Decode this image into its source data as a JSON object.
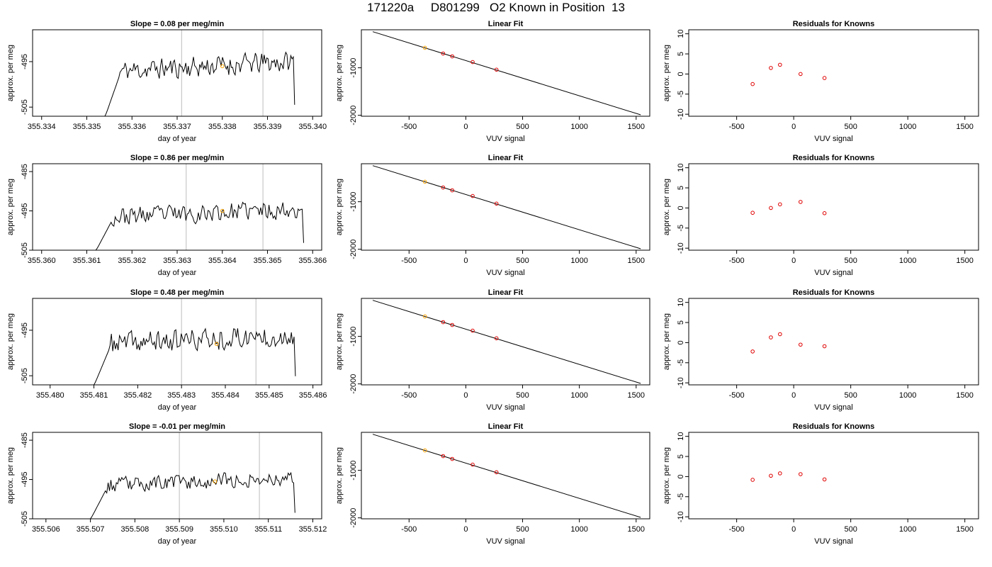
{
  "page_title": "171220a     D801299   O2 Known in Position  13",
  "colors": {
    "trace": "#000000",
    "vline": "#c8c8c8",
    "known_point": "#ffa500",
    "point": "#e00000",
    "fit_line": "#000000"
  },
  "chart_data": [
    {
      "type": "line",
      "panel": "trace-row-1",
      "title": "Slope =  0.08  per meg/min",
      "xlabel": "day of year",
      "ylabel": "approx. per meg",
      "xlim": [
        355.3338,
        355.3402
      ],
      "ylim": [
        -507,
        -488
      ],
      "xticks": [
        "355.334",
        "355.335",
        "355.336",
        "355.337",
        "355.338",
        "355.339",
        "355.340"
      ],
      "yticks": [
        "-505",
        "-495"
      ],
      "x_start": 355.3354,
      "x_end": 355.3396,
      "start_value": -507,
      "mean_level": -495.5,
      "amplitude": 1.8,
      "seed": 11,
      "vlines": [
        355.3371,
        355.3389
      ],
      "marker": {
        "x": 355.338,
        "y": -496,
        "color": "#ffa500"
      }
    },
    {
      "type": "scatter",
      "panel": "fit-row-1",
      "title": "Linear Fit",
      "xlabel": "VUV signal",
      "ylabel": "approx. per meg",
      "xlim": [
        -920,
        1620
      ],
      "ylim": [
        -2020,
        -200
      ],
      "xticks": [
        "-500",
        "0",
        "500",
        "1000",
        "1500"
      ],
      "yticks": [
        "-1000",
        "-2000"
      ],
      "line": {
        "x": [
          -820,
          1540
        ],
        "y": [
          -240,
          -1990
        ]
      },
      "points": [
        {
          "x": -360,
          "y": -580,
          "color": "#ffa500"
        },
        {
          "x": -200,
          "y": -700
        },
        {
          "x": -120,
          "y": -760
        },
        {
          "x": 60,
          "y": -880
        },
        {
          "x": 270,
          "y": -1040
        }
      ]
    },
    {
      "type": "scatter",
      "panel": "residual-row-1",
      "title": "Residuals for Knowns",
      "xlabel": "VUV signal",
      "ylabel": "approx. per meg",
      "xlim": [
        -920,
        1620
      ],
      "ylim": [
        -10.5,
        11
      ],
      "xticks": [
        "-500",
        "0",
        "500",
        "1000",
        "1500"
      ],
      "yticks": [
        "-10",
        "-5",
        "0",
        "5",
        "10"
      ],
      "points": [
        {
          "x": -360,
          "y": -2.5
        },
        {
          "x": -200,
          "y": 1.5
        },
        {
          "x": -120,
          "y": 2.3
        },
        {
          "x": 60,
          "y": 0
        },
        {
          "x": 270,
          "y": -1
        }
      ]
    },
    {
      "type": "line",
      "panel": "trace-row-2",
      "title": "Slope =  0.86  per meg/min",
      "xlabel": "day of year",
      "ylabel": "approx. per meg",
      "xlim": [
        355.3598,
        355.3662
      ],
      "ylim": [
        -505,
        -483
      ],
      "xticks": [
        "355.360",
        "355.361",
        "355.362",
        "355.363",
        "355.364",
        "355.365",
        "355.366"
      ],
      "yticks": [
        "-505",
        "-495",
        "-485"
      ],
      "x_start": 355.3612,
      "x_end": 355.3658,
      "start_value": -505,
      "mean_level": -495,
      "amplitude": 1.8,
      "seed": 23,
      "vlines": [
        355.3632,
        355.3649
      ],
      "marker": {
        "x": 355.364,
        "y": -495,
        "color": "#ffa500"
      }
    },
    {
      "type": "scatter",
      "panel": "fit-row-2",
      "title": "Linear Fit",
      "xlabel": "VUV signal",
      "ylabel": "approx. per meg",
      "xlim": [
        -920,
        1620
      ],
      "ylim": [
        -2020,
        -200
      ],
      "xticks": [
        "-500",
        "0",
        "500",
        "1000",
        "1500"
      ],
      "yticks": [
        "-1000",
        "-2000"
      ],
      "line": {
        "x": [
          -820,
          1540
        ],
        "y": [
          -240,
          -1990
        ]
      },
      "points": [
        {
          "x": -360,
          "y": -580,
          "color": "#ffa500"
        },
        {
          "x": -200,
          "y": -700
        },
        {
          "x": -120,
          "y": -760
        },
        {
          "x": 60,
          "y": -880
        },
        {
          "x": 270,
          "y": -1040
        }
      ]
    },
    {
      "type": "scatter",
      "panel": "residual-row-2",
      "title": "Residuals for Knowns",
      "xlabel": "VUV signal",
      "ylabel": "approx. per meg",
      "xlim": [
        -920,
        1620
      ],
      "ylim": [
        -10.5,
        11
      ],
      "xticks": [
        "-500",
        "0",
        "500",
        "1000",
        "1500"
      ],
      "yticks": [
        "-10",
        "-5",
        "0",
        "5",
        "10"
      ],
      "points": [
        {
          "x": -360,
          "y": -1.2
        },
        {
          "x": -200,
          "y": 0
        },
        {
          "x": -120,
          "y": 0.9
        },
        {
          "x": 60,
          "y": 1.5
        },
        {
          "x": 270,
          "y": -1.3
        }
      ]
    },
    {
      "type": "line",
      "panel": "trace-row-3",
      "title": "Slope =  0.48  per meg/min",
      "xlabel": "day of year",
      "ylabel": "approx. per meg",
      "xlim": [
        355.4796,
        355.4862
      ],
      "ylim": [
        -507,
        -488
      ],
      "xticks": [
        "355.480",
        "355.481",
        "355.482",
        "355.483",
        "355.484",
        "355.485",
        "355.486"
      ],
      "yticks": [
        "-505",
        "-495"
      ],
      "x_start": 355.481,
      "x_end": 355.4856,
      "start_value": -507,
      "mean_level": -496.5,
      "amplitude": 1.9,
      "seed": 37,
      "vlines": [
        355.483,
        355.4847
      ],
      "marker": {
        "x": 355.4838,
        "y": -498,
        "color": "#ffa500"
      }
    },
    {
      "type": "scatter",
      "panel": "fit-row-3",
      "title": "Linear Fit",
      "xlabel": "VUV signal",
      "ylabel": "approx. per meg",
      "xlim": [
        -920,
        1620
      ],
      "ylim": [
        -2020,
        -200
      ],
      "xticks": [
        "-500",
        "0",
        "500",
        "1000",
        "1500"
      ],
      "yticks": [
        "-1000",
        "-2000"
      ],
      "line": {
        "x": [
          -820,
          1540
        ],
        "y": [
          -240,
          -1990
        ]
      },
      "points": [
        {
          "x": -360,
          "y": -580,
          "color": "#ffa500"
        },
        {
          "x": -200,
          "y": -700
        },
        {
          "x": -120,
          "y": -760
        },
        {
          "x": 60,
          "y": -880
        },
        {
          "x": 270,
          "y": -1040
        }
      ]
    },
    {
      "type": "scatter",
      "panel": "residual-row-3",
      "title": "Residuals for Knowns",
      "xlabel": "VUV signal",
      "ylabel": "approx. per meg",
      "xlim": [
        -920,
        1620
      ],
      "ylim": [
        -10.5,
        11
      ],
      "xticks": [
        "-500",
        "0",
        "500",
        "1000",
        "1500"
      ],
      "yticks": [
        "-10",
        "-5",
        "0",
        "5",
        "10"
      ],
      "points": [
        {
          "x": -360,
          "y": -2.2
        },
        {
          "x": -200,
          "y": 1.3
        },
        {
          "x": -120,
          "y": 2.1
        },
        {
          "x": 60,
          "y": -0.5
        },
        {
          "x": 270,
          "y": -0.9
        }
      ]
    },
    {
      "type": "line",
      "panel": "trace-row-4",
      "title": "Slope =  -0.01  per meg/min",
      "xlabel": "day of year",
      "ylabel": "approx. per meg",
      "xlim": [
        355.5057,
        355.5122
      ],
      "ylim": [
        -505,
        -483
      ],
      "xticks": [
        "355.506",
        "355.507",
        "355.508",
        "355.509",
        "355.510",
        "355.511",
        "355.512"
      ],
      "yticks": [
        "-505",
        "-495",
        "-485"
      ],
      "x_start": 355.507,
      "x_end": 355.5116,
      "start_value": -505,
      "mean_level": -495,
      "amplitude": 1.5,
      "seed": 53,
      "vlines": [
        355.509,
        355.5108
      ],
      "marker": {
        "x": 355.5098,
        "y": -495.5,
        "color": "#ffa500"
      }
    },
    {
      "type": "scatter",
      "panel": "fit-row-4",
      "title": "Linear Fit",
      "xlabel": "VUV signal",
      "ylabel": "approx. per meg",
      "xlim": [
        -920,
        1620
      ],
      "ylim": [
        -2020,
        -200
      ],
      "xticks": [
        "-500",
        "0",
        "500",
        "1000",
        "1500"
      ],
      "yticks": [
        "-1000",
        "-2000"
      ],
      "line": {
        "x": [
          -820,
          1540
        ],
        "y": [
          -240,
          -1990
        ]
      },
      "points": [
        {
          "x": -360,
          "y": -580,
          "color": "#ffa500"
        },
        {
          "x": -200,
          "y": -700
        },
        {
          "x": -120,
          "y": -760
        },
        {
          "x": 60,
          "y": -880
        },
        {
          "x": 270,
          "y": -1040
        }
      ]
    },
    {
      "type": "scatter",
      "panel": "residual-row-4",
      "title": "Residuals for Knowns",
      "xlabel": "VUV signal",
      "ylabel": "approx. per meg",
      "xlim": [
        -920,
        1620
      ],
      "ylim": [
        -10.5,
        11
      ],
      "xticks": [
        "-500",
        "0",
        "500",
        "1000",
        "1500"
      ],
      "yticks": [
        "-10",
        "-5",
        "0",
        "5",
        "10"
      ],
      "points": [
        {
          "x": -360,
          "y": -0.8
        },
        {
          "x": -200,
          "y": 0.2
        },
        {
          "x": -120,
          "y": 0.8
        },
        {
          "x": 60,
          "y": 0.6
        },
        {
          "x": 270,
          "y": -0.7
        }
      ]
    }
  ]
}
